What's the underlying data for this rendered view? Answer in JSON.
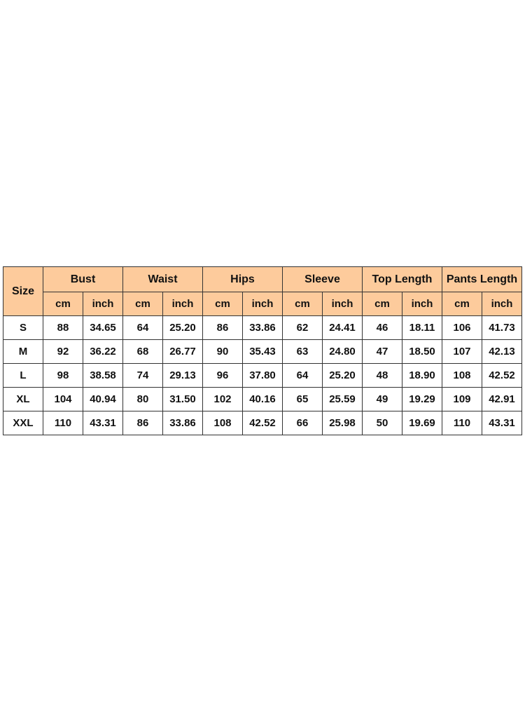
{
  "header": {
    "size_label": "Size",
    "groups": [
      "Bust",
      "Waist",
      "Hips",
      "Sleeve",
      "Top Length",
      "Pants Length"
    ],
    "units": [
      "cm",
      "inch"
    ]
  },
  "rows": [
    [
      "S",
      "88",
      "34.65",
      "64",
      "25.20",
      "86",
      "33.86",
      "62",
      "24.41",
      "46",
      "18.11",
      "106",
      "41.73"
    ],
    [
      "M",
      "92",
      "36.22",
      "68",
      "26.77",
      "90",
      "35.43",
      "63",
      "24.80",
      "47",
      "18.50",
      "107",
      "42.13"
    ],
    [
      "L",
      "98",
      "38.58",
      "74",
      "29.13",
      "96",
      "37.80",
      "64",
      "25.20",
      "48",
      "18.90",
      "108",
      "42.52"
    ],
    [
      "XL",
      "104",
      "40.94",
      "80",
      "31.50",
      "102",
      "40.16",
      "65",
      "25.59",
      "49",
      "19.29",
      "109",
      "42.91"
    ],
    [
      "XXL",
      "110",
      "43.31",
      "86",
      "33.86",
      "108",
      "42.52",
      "66",
      "25.98",
      "50",
      "19.69",
      "110",
      "43.31"
    ]
  ],
  "colors": {
    "header_bg": "#fdcb9c",
    "border": "#333333"
  }
}
